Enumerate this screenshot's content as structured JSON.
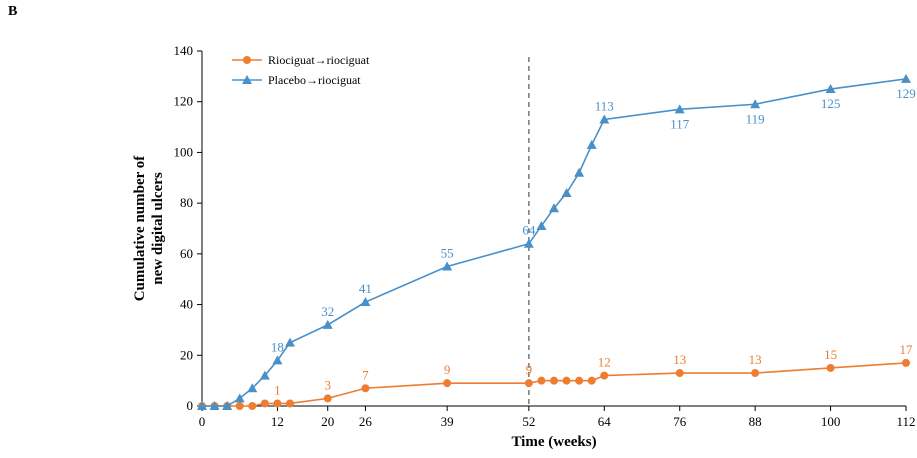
{
  "panel_label": "B",
  "chart_data": {
    "type": "line",
    "xlabel": "Time (weeks)",
    "ylabel_lines": [
      "Cumulative number of",
      "new digital ulcers"
    ],
    "xlim": [
      0,
      112
    ],
    "ylim": [
      0,
      140
    ],
    "x_ticks": [
      0,
      12,
      20,
      26,
      39,
      52,
      64,
      76,
      88,
      100,
      112
    ],
    "y_ticks": [
      0,
      20,
      40,
      60,
      80,
      100,
      120,
      140
    ],
    "legend_position": "top-left",
    "reference_line_x": 52,
    "series": [
      {
        "name": "Riociguat→riociguat",
        "color": "#ed7d31",
        "marker": "circle",
        "points": [
          {
            "x": 0,
            "y": 0
          },
          {
            "x": 2,
            "y": 0
          },
          {
            "x": 4,
            "y": 0
          },
          {
            "x": 6,
            "y": 0
          },
          {
            "x": 8,
            "y": 0
          },
          {
            "x": 10,
            "y": 1
          },
          {
            "x": 12,
            "y": 1
          },
          {
            "x": 14,
            "y": 1
          },
          {
            "x": 20,
            "y": 3
          },
          {
            "x": 26,
            "y": 7
          },
          {
            "x": 39,
            "y": 9
          },
          {
            "x": 52,
            "y": 9
          },
          {
            "x": 54,
            "y": 10
          },
          {
            "x": 56,
            "y": 10
          },
          {
            "x": 58,
            "y": 10
          },
          {
            "x": 60,
            "y": 10
          },
          {
            "x": 62,
            "y": 10
          },
          {
            "x": 64,
            "y": 12
          },
          {
            "x": 76,
            "y": 13
          },
          {
            "x": 88,
            "y": 13
          },
          {
            "x": 100,
            "y": 15
          },
          {
            "x": 112,
            "y": 17
          }
        ],
        "labels": [
          {
            "x": 12,
            "y": 1,
            "text": "1",
            "pos": "above"
          },
          {
            "x": 20,
            "y": 3,
            "text": "3",
            "pos": "above"
          },
          {
            "x": 26,
            "y": 7,
            "text": "7",
            "pos": "above"
          },
          {
            "x": 39,
            "y": 9,
            "text": "9",
            "pos": "above"
          },
          {
            "x": 52,
            "y": 9,
            "text": "9",
            "pos": "above"
          },
          {
            "x": 64,
            "y": 12,
            "text": "12",
            "pos": "above"
          },
          {
            "x": 76,
            "y": 13,
            "text": "13",
            "pos": "above"
          },
          {
            "x": 88,
            "y": 13,
            "text": "13",
            "pos": "above"
          },
          {
            "x": 100,
            "y": 15,
            "text": "15",
            "pos": "above"
          },
          {
            "x": 112,
            "y": 17,
            "text": "17",
            "pos": "above"
          }
        ]
      },
      {
        "name": "Placebo→riociguat",
        "color": "#4a90c8",
        "marker": "triangle",
        "points": [
          {
            "x": 0,
            "y": 0
          },
          {
            "x": 2,
            "y": 0
          },
          {
            "x": 4,
            "y": 0
          },
          {
            "x": 6,
            "y": 3
          },
          {
            "x": 8,
            "y": 7
          },
          {
            "x": 10,
            "y": 12
          },
          {
            "x": 12,
            "y": 18
          },
          {
            "x": 14,
            "y": 25
          },
          {
            "x": 20,
            "y": 32
          },
          {
            "x": 26,
            "y": 41
          },
          {
            "x": 39,
            "y": 55
          },
          {
            "x": 52,
            "y": 64
          },
          {
            "x": 54,
            "y": 71
          },
          {
            "x": 56,
            "y": 78
          },
          {
            "x": 58,
            "y": 84
          },
          {
            "x": 60,
            "y": 92
          },
          {
            "x": 62,
            "y": 103
          },
          {
            "x": 64,
            "y": 113
          },
          {
            "x": 76,
            "y": 117
          },
          {
            "x": 88,
            "y": 119
          },
          {
            "x": 100,
            "y": 125
          },
          {
            "x": 112,
            "y": 129
          }
        ],
        "labels": [
          {
            "x": 12,
            "y": 18,
            "text": "18",
            "pos": "above"
          },
          {
            "x": 20,
            "y": 32,
            "text": "32",
            "pos": "above"
          },
          {
            "x": 26,
            "y": 41,
            "text": "41",
            "pos": "above"
          },
          {
            "x": 39,
            "y": 55,
            "text": "55",
            "pos": "above"
          },
          {
            "x": 52,
            "y": 64,
            "text": "64",
            "pos": "above"
          },
          {
            "x": 64,
            "y": 113,
            "text": "113",
            "pos": "above"
          },
          {
            "x": 76,
            "y": 117,
            "text": "117",
            "pos": "below"
          },
          {
            "x": 88,
            "y": 119,
            "text": "119",
            "pos": "below"
          },
          {
            "x": 100,
            "y": 125,
            "text": "125",
            "pos": "below"
          },
          {
            "x": 112,
            "y": 129,
            "text": "129",
            "pos": "below"
          }
        ]
      }
    ]
  }
}
